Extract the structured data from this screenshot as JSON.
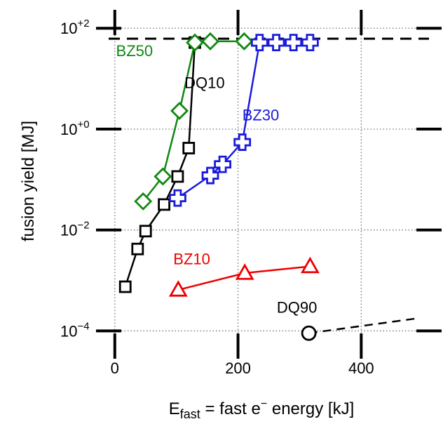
{
  "chart_data": {
    "type": "line",
    "xlabel_main": "E",
    "xlabel_sub": "fast",
    "xlabel_rest": " = fast e",
    "xlabel_sup": "−",
    "xlabel_end": " energy  [kJ]",
    "ylabel": "fusion yield  [MJ]",
    "xscale": "linear",
    "yscale": "log",
    "xlim": [
      -10,
      510
    ],
    "ylim": [
      5e-05,
      130
    ],
    "xticks": [
      0,
      200,
      400
    ],
    "xtick_labels": [
      "0",
      "200",
      "400"
    ],
    "yticks": [
      0.0001,
      0.01,
      1,
      100
    ],
    "ytick_labels": [
      {
        "base": "10",
        "exp": "−4"
      },
      {
        "base": "10",
        "exp": "−2"
      },
      {
        "base": "10",
        "exp": "+0"
      },
      {
        "base": "10",
        "exp": "+2"
      }
    ],
    "grid": true,
    "reference_line_y": 62,
    "series": [
      {
        "name": "DQ10",
        "color": "#000000",
        "marker": "square",
        "linestyle": "solid",
        "x": [
          17,
          37,
          50,
          80,
          102,
          120,
          130
        ],
        "y": [
          0.00075,
          0.0042,
          0.0095,
          0.032,
          0.115,
          0.42,
          52
        ]
      },
      {
        "name": "BZ50",
        "color": "#118811",
        "marker": "diamond",
        "linestyle": "solid",
        "x": [
          46,
          78,
          105,
          130,
          155,
          210
        ],
        "y": [
          0.037,
          0.115,
          2.3,
          52,
          55,
          55
        ]
      },
      {
        "name": "BZ30",
        "color": "#1a1adb",
        "marker": "plus",
        "linestyle": "solid",
        "x": [
          102,
          155,
          175,
          207,
          235,
          262,
          290,
          317
        ],
        "y": [
          0.043,
          0.12,
          0.2,
          0.55,
          52,
          52,
          52,
          52
        ]
      },
      {
        "name": "BZ10",
        "color": "#ee0000",
        "marker": "triangle",
        "linestyle": "solid",
        "x": [
          103,
          211,
          317
        ],
        "y": [
          0.00065,
          0.0014,
          0.0019
        ]
      },
      {
        "name": "DQ90",
        "color": "#000000",
        "marker": "circle",
        "linestyle": "dashed",
        "x": [
          315,
          495
        ],
        "y": [
          9e-05,
          0.00018
        ]
      }
    ],
    "annotations": [
      {
        "text": "BZ50",
        "series": "BZ50"
      },
      {
        "text": "DQ10",
        "series": "DQ10"
      },
      {
        "text": "BZ30",
        "series": "BZ30"
      },
      {
        "text": "BZ10",
        "series": "BZ10"
      },
      {
        "text": "DQ90",
        "series": "DQ90"
      }
    ]
  }
}
